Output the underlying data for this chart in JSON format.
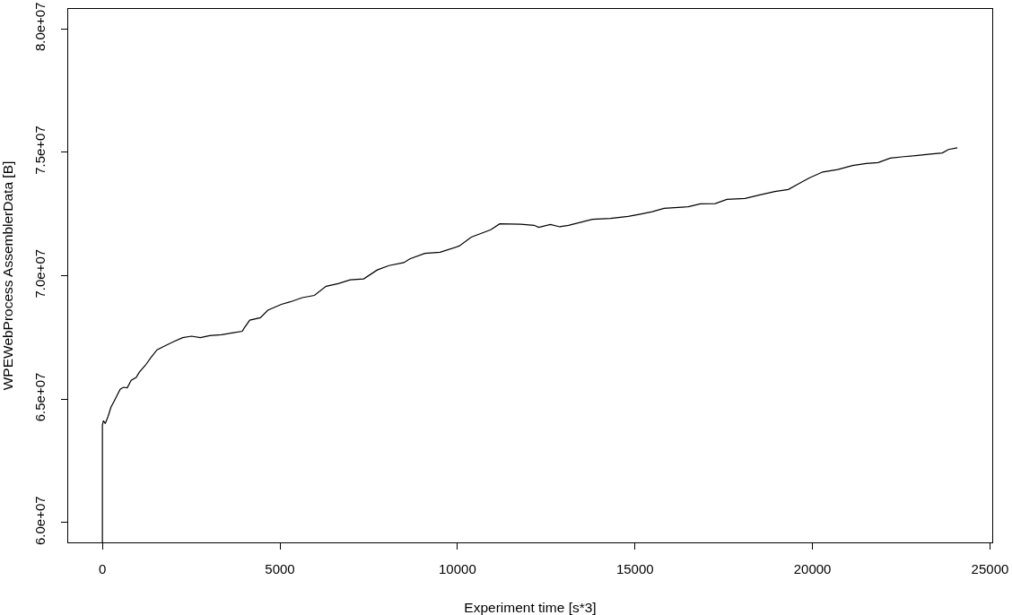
{
  "chart_data": {
    "type": "line",
    "xlabel": "Experiment time [s*3]",
    "ylabel": "WPEWebProcess AssemblerData [B]",
    "x": [
      0,
      0,
      30,
      80,
      160,
      240,
      360,
      500,
      590,
      700,
      810,
      950,
      1040,
      1210,
      1370,
      1540,
      1750,
      2010,
      2260,
      2510,
      2760,
      3020,
      3350,
      3690,
      3940,
      3990,
      4150,
      4450,
      4660,
      5040,
      5290,
      5630,
      5970,
      6300,
      6640,
      6980,
      7360,
      7740,
      8070,
      8490,
      8660,
      9080,
      9510,
      10050,
      10390,
      10940,
      11190,
      11780,
      12160,
      12290,
      12620,
      12880,
      13130,
      13800,
      14310,
      14810,
      15150,
      15490,
      15820,
      16500,
      16840,
      17260,
      17590,
      18100,
      18520,
      18940,
      19320,
      19620,
      19910,
      20290,
      20710,
      21130,
      21510,
      21850,
      22190,
      22570,
      22900,
      23320,
      23660,
      23830,
      24080
    ],
    "series": [
      {
        "color": "#000000",
        "values": [
          59200000,
          63950000,
          64130000,
          64010000,
          64300000,
          64670000,
          65000000,
          65400000,
          65480000,
          65460000,
          65760000,
          65880000,
          66090000,
          66370000,
          66690000,
          67000000,
          67150000,
          67330000,
          67490000,
          67550000,
          67490000,
          67570000,
          67610000,
          67690000,
          67750000,
          67870000,
          68200000,
          68300000,
          68600000,
          68840000,
          68940000,
          69110000,
          69200000,
          69570000,
          69680000,
          69830000,
          69870000,
          70230000,
          70410000,
          70530000,
          70680000,
          70900000,
          70950000,
          71200000,
          71560000,
          71860000,
          72100000,
          72080000,
          72040000,
          71960000,
          72070000,
          71980000,
          72040000,
          72280000,
          72320000,
          72400000,
          72490000,
          72590000,
          72730000,
          72790000,
          72910000,
          72920000,
          73090000,
          73130000,
          73270000,
          73410000,
          73490000,
          73730000,
          73960000,
          74200000,
          74300000,
          74460000,
          74540000,
          74580000,
          74760000,
          74820000,
          74860000,
          74920000,
          74970000,
          75110000,
          75180000
        ]
      }
    ],
    "xlim": [
      -964,
      25064
    ],
    "ylim": [
      59200000,
      80800000
    ],
    "xticks": [
      0,
      5000,
      10000,
      15000,
      20000,
      25000
    ],
    "yticks": [
      {
        "value": 60000000,
        "label": "6.0e+07"
      },
      {
        "value": 65000000,
        "label": "6.5e+07"
      },
      {
        "value": 70000000,
        "label": "7.0e+07"
      },
      {
        "value": 75000000,
        "label": "7.5e+07"
      },
      {
        "value": 80000000,
        "label": "8.0e+07"
      }
    ],
    "marker": "none",
    "line_style": "solid"
  }
}
